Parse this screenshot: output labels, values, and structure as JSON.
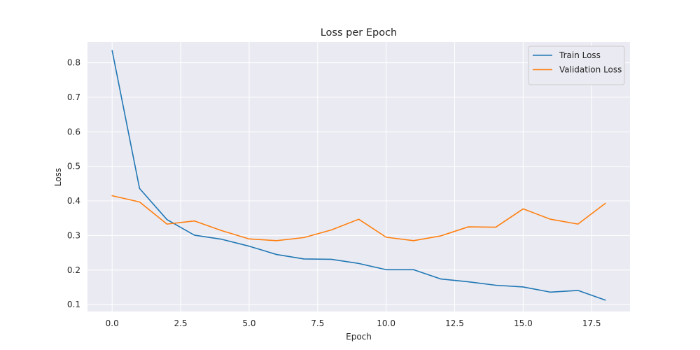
{
  "chart_data": {
    "type": "line",
    "title": "Loss per Epoch",
    "xlabel": "Epoch",
    "ylabel": "Loss",
    "x": [
      0,
      1,
      2,
      3,
      4,
      5,
      6,
      7,
      8,
      9,
      10,
      11,
      12,
      13,
      14,
      15,
      16,
      17,
      18
    ],
    "xlim": [
      -0.9,
      18.9
    ],
    "ylim": [
      0.08,
      0.86
    ],
    "xticks": [
      "0.0",
      "2.5",
      "5.0",
      "7.5",
      "10.0",
      "12.5",
      "15.0",
      "17.5"
    ],
    "yticks": [
      "0.1",
      "0.2",
      "0.3",
      "0.4",
      "0.5",
      "0.6",
      "0.7",
      "0.8"
    ],
    "grid": true,
    "legend_position": "top-right",
    "series": [
      {
        "name": "Train Loss",
        "color": "#1f77b4",
        "values": [
          0.835,
          0.436,
          0.346,
          0.301,
          0.289,
          0.269,
          0.245,
          0.232,
          0.231,
          0.219,
          0.201,
          0.201,
          0.174,
          0.166,
          0.156,
          0.151,
          0.136,
          0.141,
          0.113
        ]
      },
      {
        "name": "Validation Loss",
        "color": "#ff7f0e",
        "values": [
          0.415,
          0.397,
          0.333,
          0.342,
          0.314,
          0.29,
          0.285,
          0.294,
          0.316,
          0.347,
          0.295,
          0.285,
          0.299,
          0.325,
          0.324,
          0.377,
          0.347,
          0.333,
          0.393
        ]
      }
    ]
  }
}
